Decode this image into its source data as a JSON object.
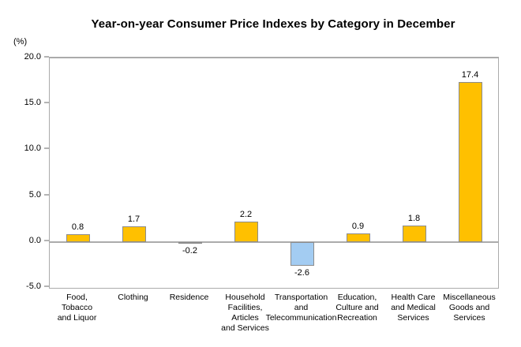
{
  "chart_data": {
    "type": "bar",
    "title": "Year-on-year Consumer Price Indexes by Category in December",
    "ylabel_unit": "(%)",
    "xlabel": "",
    "ylim": [
      -5.0,
      20.0
    ],
    "ytick_values": [
      20,
      15,
      10,
      5,
      0,
      -5
    ],
    "ytick_labels": [
      "20.0",
      "15.0",
      "10.0",
      "5.0",
      "0.0",
      "-5.0"
    ],
    "grid": false,
    "legend": "none",
    "categories": [
      "Food,\nTobacco\nand Liquor",
      "Clothing",
      "Residence",
      "Household\nFacilities,\nArticles\nand Services",
      "Transportation\nand\nTelecommunication",
      "Education,\nCulture and\nRecreation",
      "Health Care\nand Medical\nServices",
      "Miscellaneous\nGoods and\nServices"
    ],
    "values": [
      0.8,
      1.7,
      -0.2,
      2.2,
      -2.6,
      0.9,
      1.8,
      17.4
    ],
    "value_labels": [
      "0.8",
      "1.7",
      "-0.2",
      "2.2",
      "-2.6",
      "0.9",
      "1.8",
      "17.4"
    ],
    "colors": {
      "positive_bar": "#FFC000",
      "negative_bar": "#A3CCF2",
      "bar_border": "#8C8C8C",
      "axis": "#ABABAB",
      "text": "#000000",
      "background": "#FFFFFF"
    }
  }
}
